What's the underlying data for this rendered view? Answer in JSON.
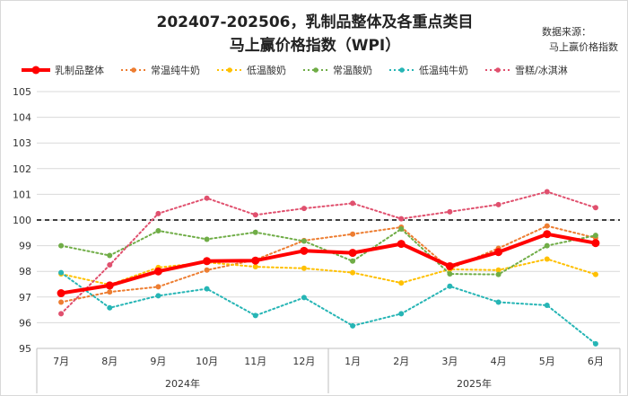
{
  "title": [
    "202407-202506，乳制品整体及各重点类目",
    "马上赢价格指数（WPI）"
  ],
  "source": [
    "数据来源：",
    "马上赢价格指数"
  ],
  "chart_data": {
    "type": "line",
    "title": "202407-202506，乳制品整体及各重点类目 马上赢价格指数（WPI）",
    "categories": [
      "7月",
      "8月",
      "9月",
      "10月",
      "11月",
      "12月",
      "1月",
      "2月",
      "3月",
      "4月",
      "5月",
      "6月"
    ],
    "year_groups": [
      {
        "label": "2024年",
        "span": 6
      },
      {
        "label": "2025年",
        "span": 6
      }
    ],
    "ylim": [
      95,
      105
    ],
    "yticks": [
      95,
      96,
      97,
      98,
      99,
      100,
      101,
      102,
      103,
      104,
      105
    ],
    "reference_line": 100,
    "legend_position": "top",
    "series": [
      {
        "name": "乳制品整体",
        "color": "#ff0000",
        "style": "solid",
        "values": [
          97.15,
          97.45,
          98.0,
          98.4,
          98.42,
          98.8,
          98.72,
          99.07,
          98.2,
          98.75,
          99.45,
          99.1
        ]
      },
      {
        "name": "常温纯牛奶",
        "color": "#ed7d31",
        "style": "dotted",
        "values": [
          96.8,
          97.2,
          97.4,
          98.05,
          98.45,
          99.2,
          99.45,
          99.72,
          98.1,
          98.9,
          99.77,
          99.3
        ]
      },
      {
        "name": "低温酸奶",
        "color": "#ffc000",
        "style": "dotted",
        "values": [
          97.9,
          97.48,
          98.15,
          98.35,
          98.18,
          98.12,
          97.95,
          97.55,
          98.08,
          98.05,
          98.48,
          97.88
        ]
      },
      {
        "name": "常温酸奶",
        "color": "#70ad47",
        "style": "dotted",
        "values": [
          99.0,
          98.62,
          99.58,
          99.25,
          99.52,
          99.18,
          98.4,
          99.65,
          97.9,
          97.88,
          99.0,
          99.4
        ]
      },
      {
        "name": "低温纯牛奶",
        "color": "#26b5b5",
        "style": "dotted",
        "values": [
          97.95,
          96.58,
          97.05,
          97.32,
          96.28,
          96.98,
          95.88,
          96.35,
          97.42,
          96.8,
          96.68,
          95.18
        ]
      },
      {
        "name": "雪糕/冰淇淋",
        "color": "#e0506e",
        "style": "dotted",
        "values": [
          96.35,
          98.25,
          100.25,
          100.85,
          100.2,
          100.45,
          100.65,
          100.05,
          100.32,
          100.6,
          101.1,
          100.48
        ]
      }
    ]
  }
}
